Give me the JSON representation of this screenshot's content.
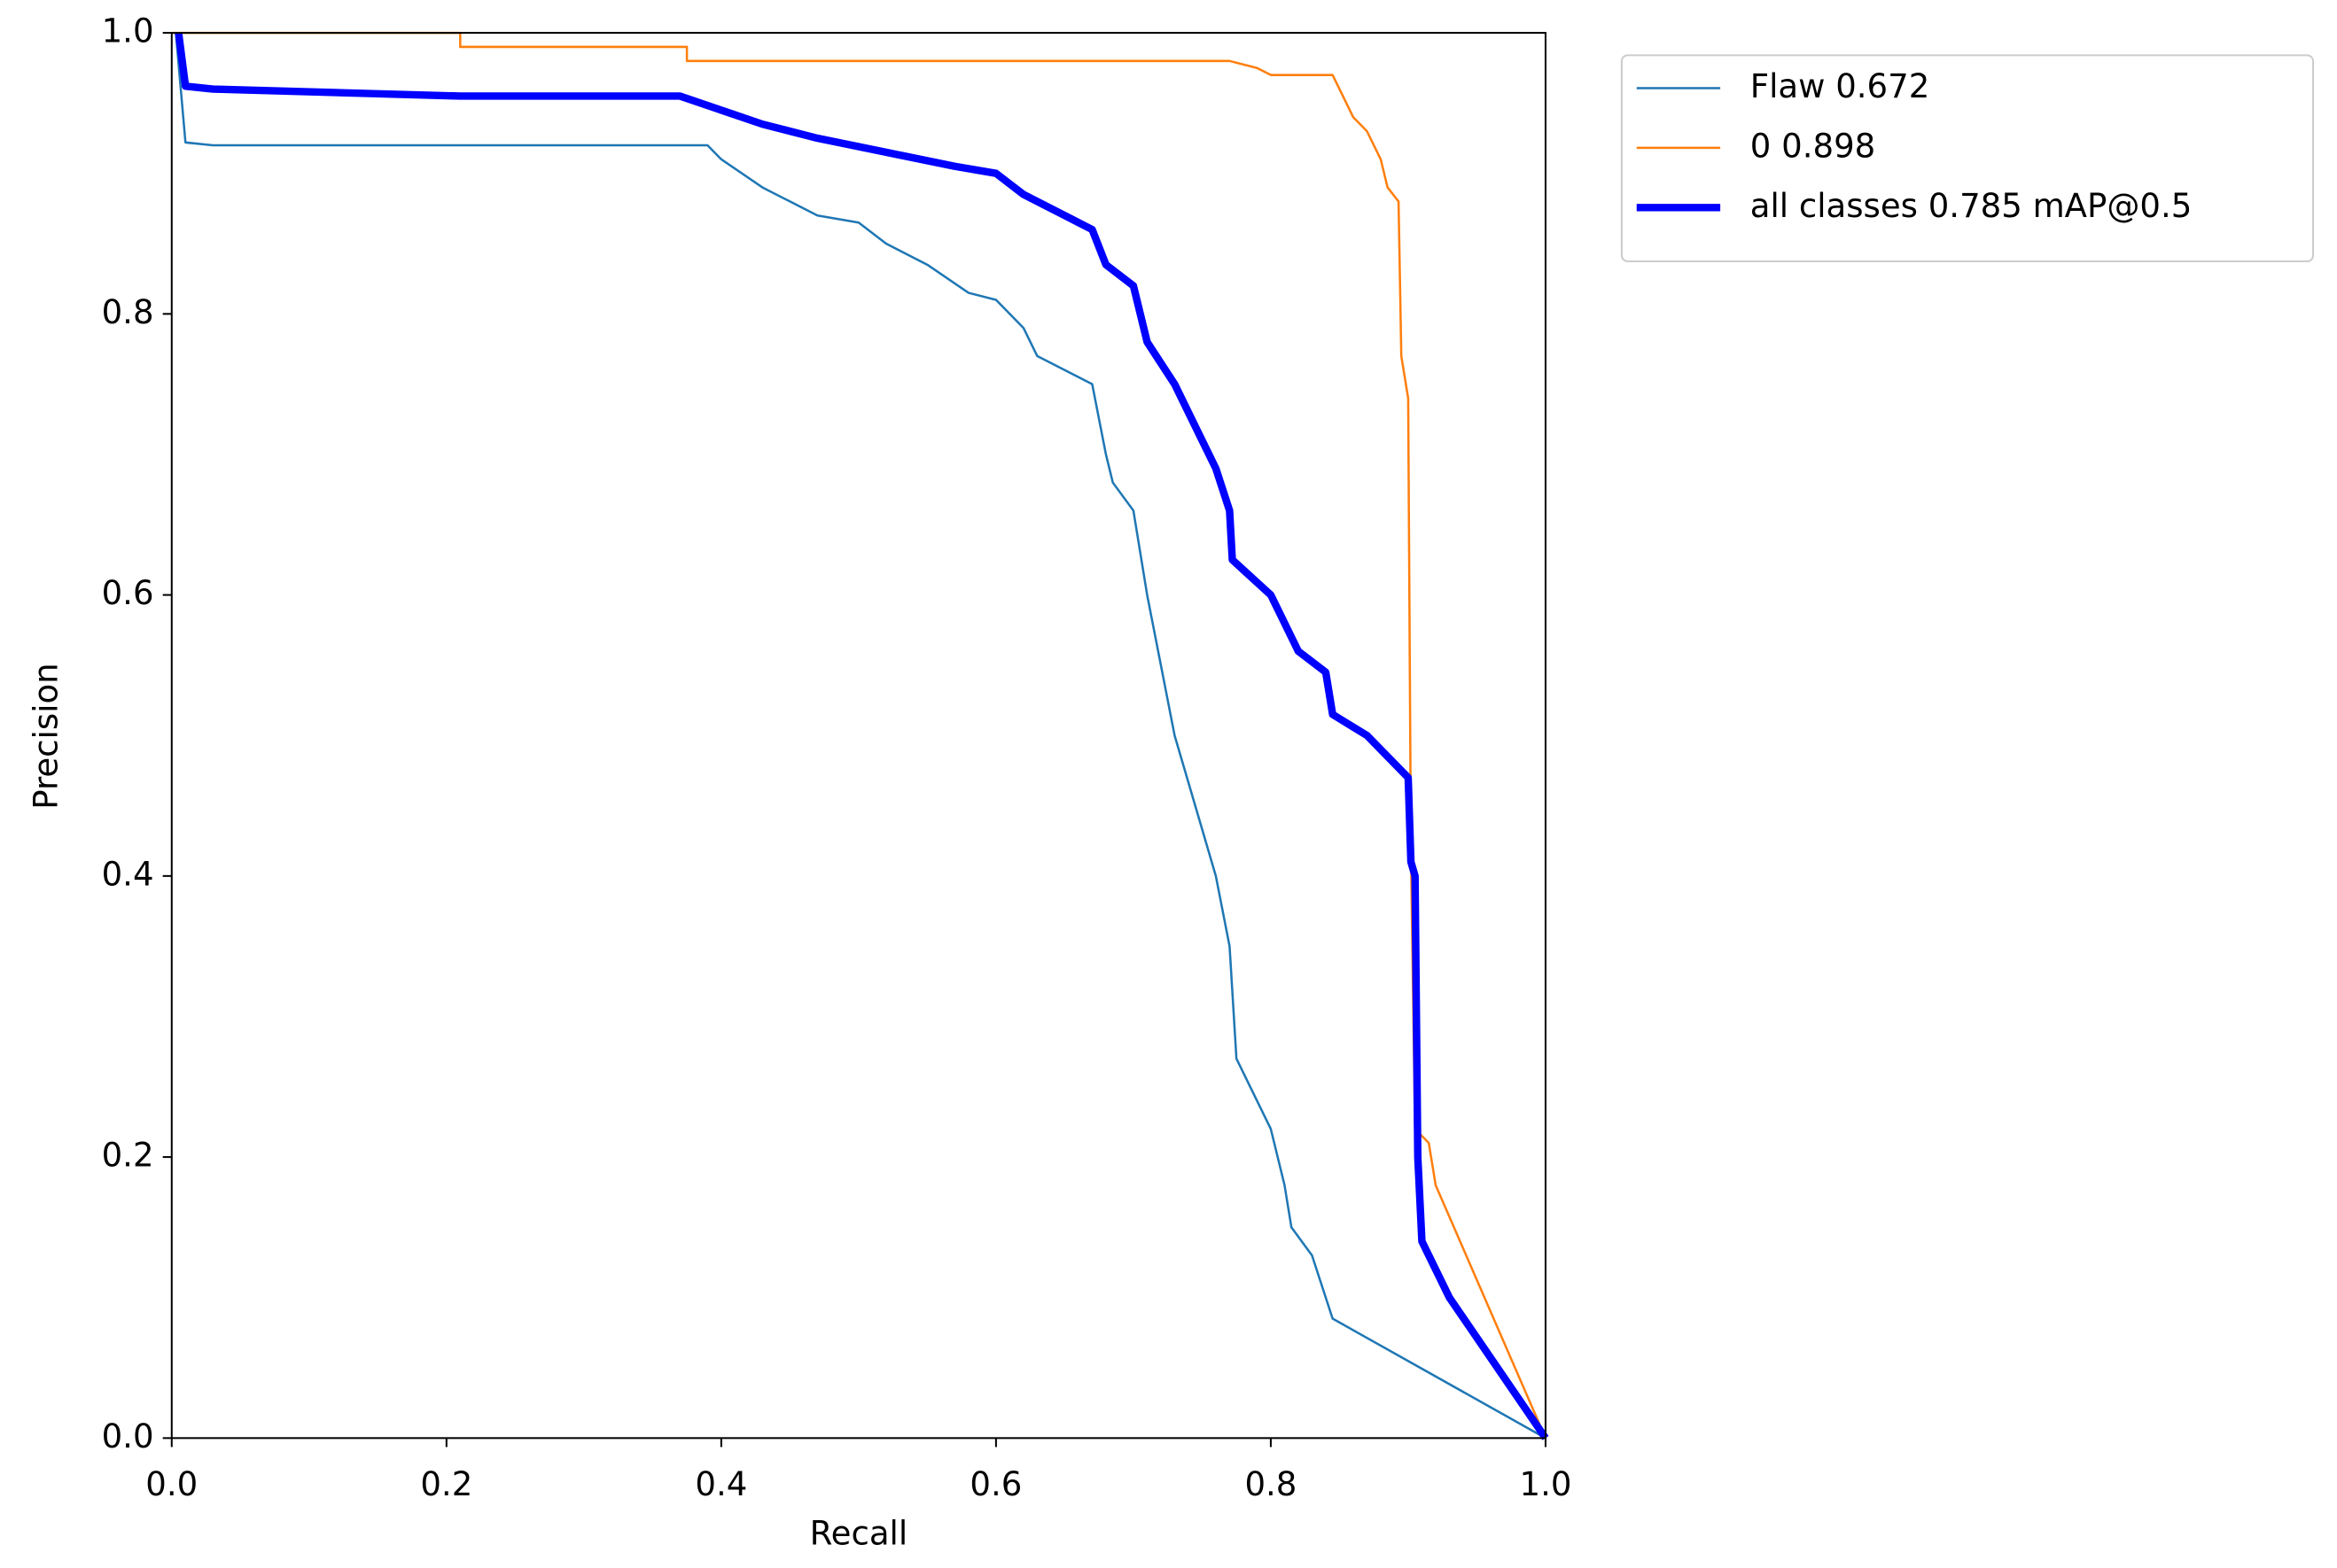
{
  "chart_data": {
    "type": "line",
    "xlabel": "Recall",
    "ylabel": "Precision",
    "xlim": [
      0,
      1
    ],
    "ylim": [
      0,
      1
    ],
    "xticks": [
      {
        "value": 0,
        "label": "0.0"
      },
      0.2,
      0.4,
      0.6,
      0.8,
      {
        "value": 1,
        "label": "1.0"
      }
    ],
    "yticks": [
      {
        "value": 0,
        "label": "0.0"
      },
      0.2,
      0.4,
      0.6,
      0.8,
      {
        "value": 1,
        "label": "1.0"
      }
    ],
    "legend": "outside upper right",
    "series": [
      {
        "name": "Flaw 0.672",
        "color": "#1f77b4",
        "linewidth": 1.5,
        "x": [
          0.003,
          0.01,
          0.03,
          0.39,
          0.4,
          0.43,
          0.45,
          0.47,
          0.5,
          0.52,
          0.55,
          0.58,
          0.6,
          0.62,
          0.63,
          0.65,
          0.67,
          0.68,
          0.685,
          0.7,
          0.71,
          0.72,
          0.73,
          0.745,
          0.76,
          0.77,
          0.775,
          0.785,
          0.8,
          0.81,
          0.815,
          0.83,
          0.84,
          0.845,
          1.0
        ],
        "values": [
          1.0,
          0.922,
          0.92,
          0.92,
          0.91,
          0.89,
          0.88,
          0.87,
          0.865,
          0.85,
          0.835,
          0.815,
          0.81,
          0.79,
          0.77,
          0.76,
          0.75,
          0.7,
          0.68,
          0.66,
          0.6,
          0.55,
          0.5,
          0.45,
          0.4,
          0.35,
          0.27,
          0.25,
          0.22,
          0.18,
          0.15,
          0.13,
          0.1,
          0.085,
          0.0
        ]
      },
      {
        "name": "0 0.898",
        "color": "#ff7f0e",
        "linewidth": 1.5,
        "x": [
          0.0,
          0.21,
          0.21,
          0.375,
          0.375,
          0.77,
          0.79,
          0.8,
          0.845,
          0.86,
          0.87,
          0.88,
          0.885,
          0.893,
          0.895,
          0.9,
          0.902,
          0.905,
          0.915,
          0.92,
          1.0
        ],
        "values": [
          1.0,
          1.0,
          0.99,
          0.99,
          0.98,
          0.98,
          0.975,
          0.97,
          0.97,
          0.94,
          0.93,
          0.91,
          0.89,
          0.88,
          0.77,
          0.74,
          0.42,
          0.22,
          0.21,
          0.18,
          0.0
        ]
      },
      {
        "name": "all classes 0.785 mAP@0.5",
        "color": "#0000ff",
        "linewidth": 5,
        "x": [
          0.005,
          0.01,
          0.03,
          0.21,
          0.37,
          0.4,
          0.43,
          0.47,
          0.52,
          0.57,
          0.6,
          0.62,
          0.65,
          0.67,
          0.68,
          0.7,
          0.71,
          0.73,
          0.75,
          0.76,
          0.77,
          0.772,
          0.8,
          0.81,
          0.82,
          0.84,
          0.845,
          0.87,
          0.89,
          0.9,
          0.902,
          0.905,
          0.907,
          0.91,
          0.92,
          0.93,
          1.0
        ],
        "values": [
          1.0,
          0.962,
          0.96,
          0.955,
          0.955,
          0.945,
          0.935,
          0.925,
          0.915,
          0.905,
          0.9,
          0.885,
          0.87,
          0.86,
          0.835,
          0.82,
          0.78,
          0.75,
          0.71,
          0.69,
          0.66,
          0.625,
          0.6,
          0.58,
          0.56,
          0.545,
          0.515,
          0.5,
          0.48,
          0.47,
          0.41,
          0.4,
          0.2,
          0.14,
          0.12,
          0.1,
          0.0
        ]
      }
    ]
  }
}
